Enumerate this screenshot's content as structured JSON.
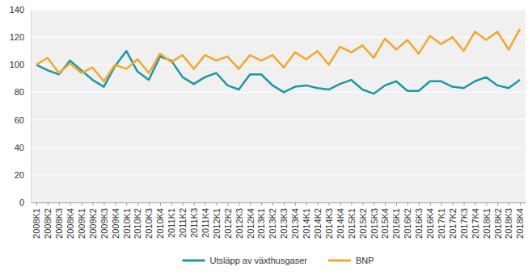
{
  "chart_data": {
    "type": "line",
    "categories": [
      "2008K1",
      "2008K2",
      "2008K3",
      "2008K4",
      "2009K1",
      "2009K2",
      "2009K3",
      "2009K4",
      "2010K1",
      "2010K2",
      "2010K3",
      "2010K4",
      "2011K1",
      "2011K2",
      "2011K3",
      "2011K4",
      "2012K1",
      "2012K2",
      "2012K3",
      "2012K4",
      "2013K1",
      "2013K2",
      "2013K3",
      "2013K4",
      "2014K1",
      "2014K2",
      "2014K3",
      "2014K4",
      "2015K1",
      "2015K2",
      "2015K3",
      "2015K4",
      "2016K1",
      "2016K2",
      "2016K3",
      "2016K4",
      "2017K1",
      "2017K2",
      "2017K3",
      "2017K4",
      "2018K1",
      "2018K2",
      "2018K3",
      "2018K4"
    ],
    "series": [
      {
        "name": "Utsläpp av växthusgaser",
        "color": "#1b9aa0",
        "values": [
          100,
          96,
          93,
          103,
          96,
          89,
          84,
          99,
          110,
          95,
          89,
          106,
          103,
          91,
          86,
          91,
          94,
          85,
          82,
          93,
          93,
          85,
          80,
          84,
          85,
          83,
          82,
          86,
          89,
          82,
          79,
          85,
          88,
          81,
          81,
          88,
          88,
          84,
          83,
          88,
          91,
          85,
          83,
          89
        ]
      },
      {
        "name": "BNP",
        "color": "#f2a72e",
        "values": [
          100,
          105,
          94,
          101,
          94,
          98,
          88,
          100,
          97,
          104,
          94,
          108,
          102,
          107,
          97,
          107,
          103,
          106,
          97,
          107,
          103,
          107,
          98,
          109,
          104,
          110,
          100,
          113,
          109,
          114,
          105,
          119,
          111,
          118,
          108,
          121,
          115,
          120,
          110,
          124,
          118,
          124,
          111,
          126
        ]
      }
    ],
    "ylim": [
      0,
      140
    ],
    "yticks": [
      0,
      20,
      40,
      60,
      80,
      100,
      120,
      140
    ],
    "grid": true,
    "legend": "bottom"
  }
}
